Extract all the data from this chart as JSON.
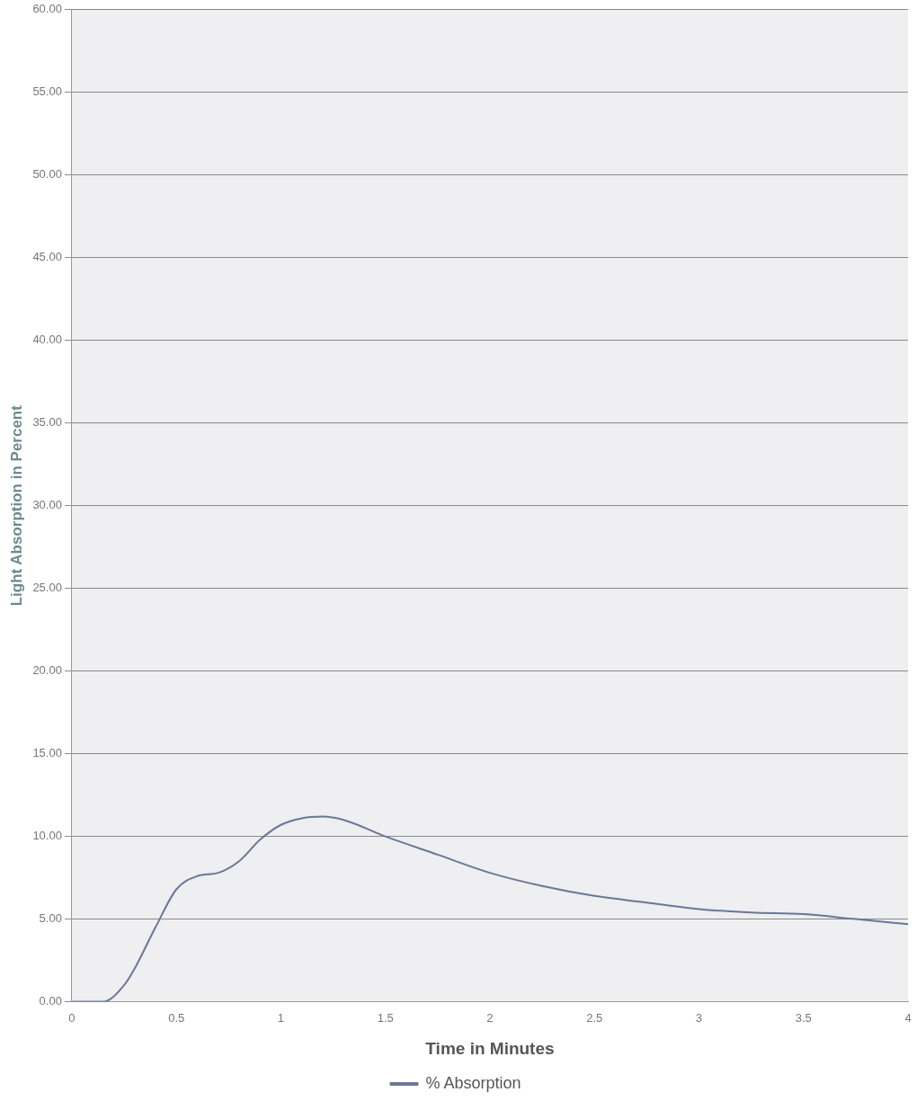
{
  "chart_data": {
    "type": "line",
    "xlabel": "Time in Minutes",
    "ylabel": "Light Absorption in Percent",
    "x": [
      0,
      0.15,
      0.25,
      0.3,
      0.4,
      0.5,
      0.6,
      0.7,
      0.8,
      0.9,
      1.0,
      1.1,
      1.2,
      1.3,
      1.5,
      1.75,
      2.0,
      2.25,
      2.5,
      2.75,
      3.0,
      3.25,
      3.5,
      3.75,
      4.0
    ],
    "series": [
      {
        "name": "% Absorption",
        "color": "#6a7896",
        "values": [
          0,
          0,
          1,
          2,
          4.5,
          6.8,
          7.6,
          7.8,
          8.5,
          9.8,
          10.7,
          11.1,
          11.2,
          11.0,
          10.0,
          8.9,
          7.8,
          7.0,
          6.4,
          6.0,
          5.6,
          5.4,
          5.3,
          5.0,
          4.7
        ]
      }
    ],
    "xlim": [
      0,
      4
    ],
    "xticks": [
      0,
      0.5,
      1,
      1.5,
      2,
      2.5,
      3,
      3.5,
      4
    ],
    "ylim": [
      0,
      60
    ],
    "yticks": [
      {
        "value": 0,
        "label": "0.00"
      },
      {
        "value": 5,
        "label": "5.00"
      },
      {
        "value": 10,
        "label": "10.00"
      },
      {
        "value": 15,
        "label": "15.00"
      },
      {
        "value": 20,
        "label": "20.00"
      },
      {
        "value": 25,
        "label": "25.00"
      },
      {
        "value": 30,
        "label": "30.00"
      },
      {
        "value": 35,
        "label": "35.00"
      },
      {
        "value": 40,
        "label": "40.00"
      },
      {
        "value": 45,
        "label": "45.00"
      },
      {
        "value": 50,
        "label": "50.00"
      },
      {
        "value": 55,
        "label": "55.00"
      },
      {
        "value": 60,
        "label": "60.00"
      }
    ],
    "grid": "y",
    "legend": "bottom",
    "marker": "none",
    "line_style": "solid"
  }
}
